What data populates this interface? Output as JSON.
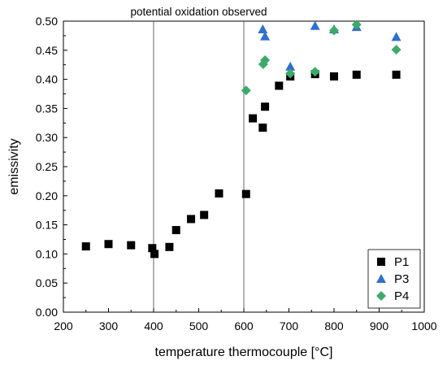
{
  "chart_data": {
    "type": "scatter",
    "xlabel": "temperature thermocouple [°C]",
    "ylabel": "emissivity",
    "xlim": [
      200,
      1000
    ],
    "ylim": [
      0.0,
      0.5
    ],
    "x_ticks": [
      "200",
      "300",
      "400",
      "500",
      "600",
      "700",
      "800",
      "900",
      "1000"
    ],
    "y_ticks": [
      "0.00",
      "0.05",
      "0.10",
      "0.15",
      "0.20",
      "0.25",
      "0.30",
      "0.35",
      "0.40",
      "0.45",
      "0.50"
    ],
    "grid": false,
    "legend_position": "bottom-right",
    "annotations": [
      {
        "text": "potential oxidation observed"
      }
    ],
    "vertical_lines": [
      400,
      600
    ],
    "series": [
      {
        "name": "P1",
        "marker": "square",
        "color": "#000000",
        "points": [
          [
            250,
            0.113
          ],
          [
            300,
            0.117
          ],
          [
            350,
            0.115
          ],
          [
            397,
            0.11
          ],
          [
            402,
            0.1
          ],
          [
            435,
            0.112
          ],
          [
            450,
            0.141
          ],
          [
            483,
            0.16
          ],
          [
            512,
            0.167
          ],
          [
            545,
            0.204
          ],
          [
            605,
            0.203
          ],
          [
            620,
            0.333
          ],
          [
            642,
            0.317
          ],
          [
            647,
            0.353
          ],
          [
            678,
            0.389
          ],
          [
            703,
            0.405
          ],
          [
            758,
            0.409
          ],
          [
            800,
            0.405
          ],
          [
            850,
            0.408
          ],
          [
            938,
            0.408
          ]
        ]
      },
      {
        "name": "P3",
        "marker": "triangle",
        "color": "#2f6fcf",
        "points": [
          [
            642,
            0.486
          ],
          [
            647,
            0.474
          ],
          [
            703,
            0.422
          ],
          [
            758,
            0.492
          ],
          [
            800,
            0.486
          ],
          [
            850,
            0.49
          ],
          [
            938,
            0.473
          ]
        ]
      },
      {
        "name": "P4",
        "marker": "diamond",
        "color": "#3daa6a",
        "points": [
          [
            605,
            0.381
          ],
          [
            643,
            0.426
          ],
          [
            647,
            0.433
          ],
          [
            703,
            0.41
          ],
          [
            758,
            0.413
          ],
          [
            800,
            0.484
          ],
          [
            850,
            0.494
          ],
          [
            938,
            0.451
          ]
        ]
      }
    ]
  }
}
